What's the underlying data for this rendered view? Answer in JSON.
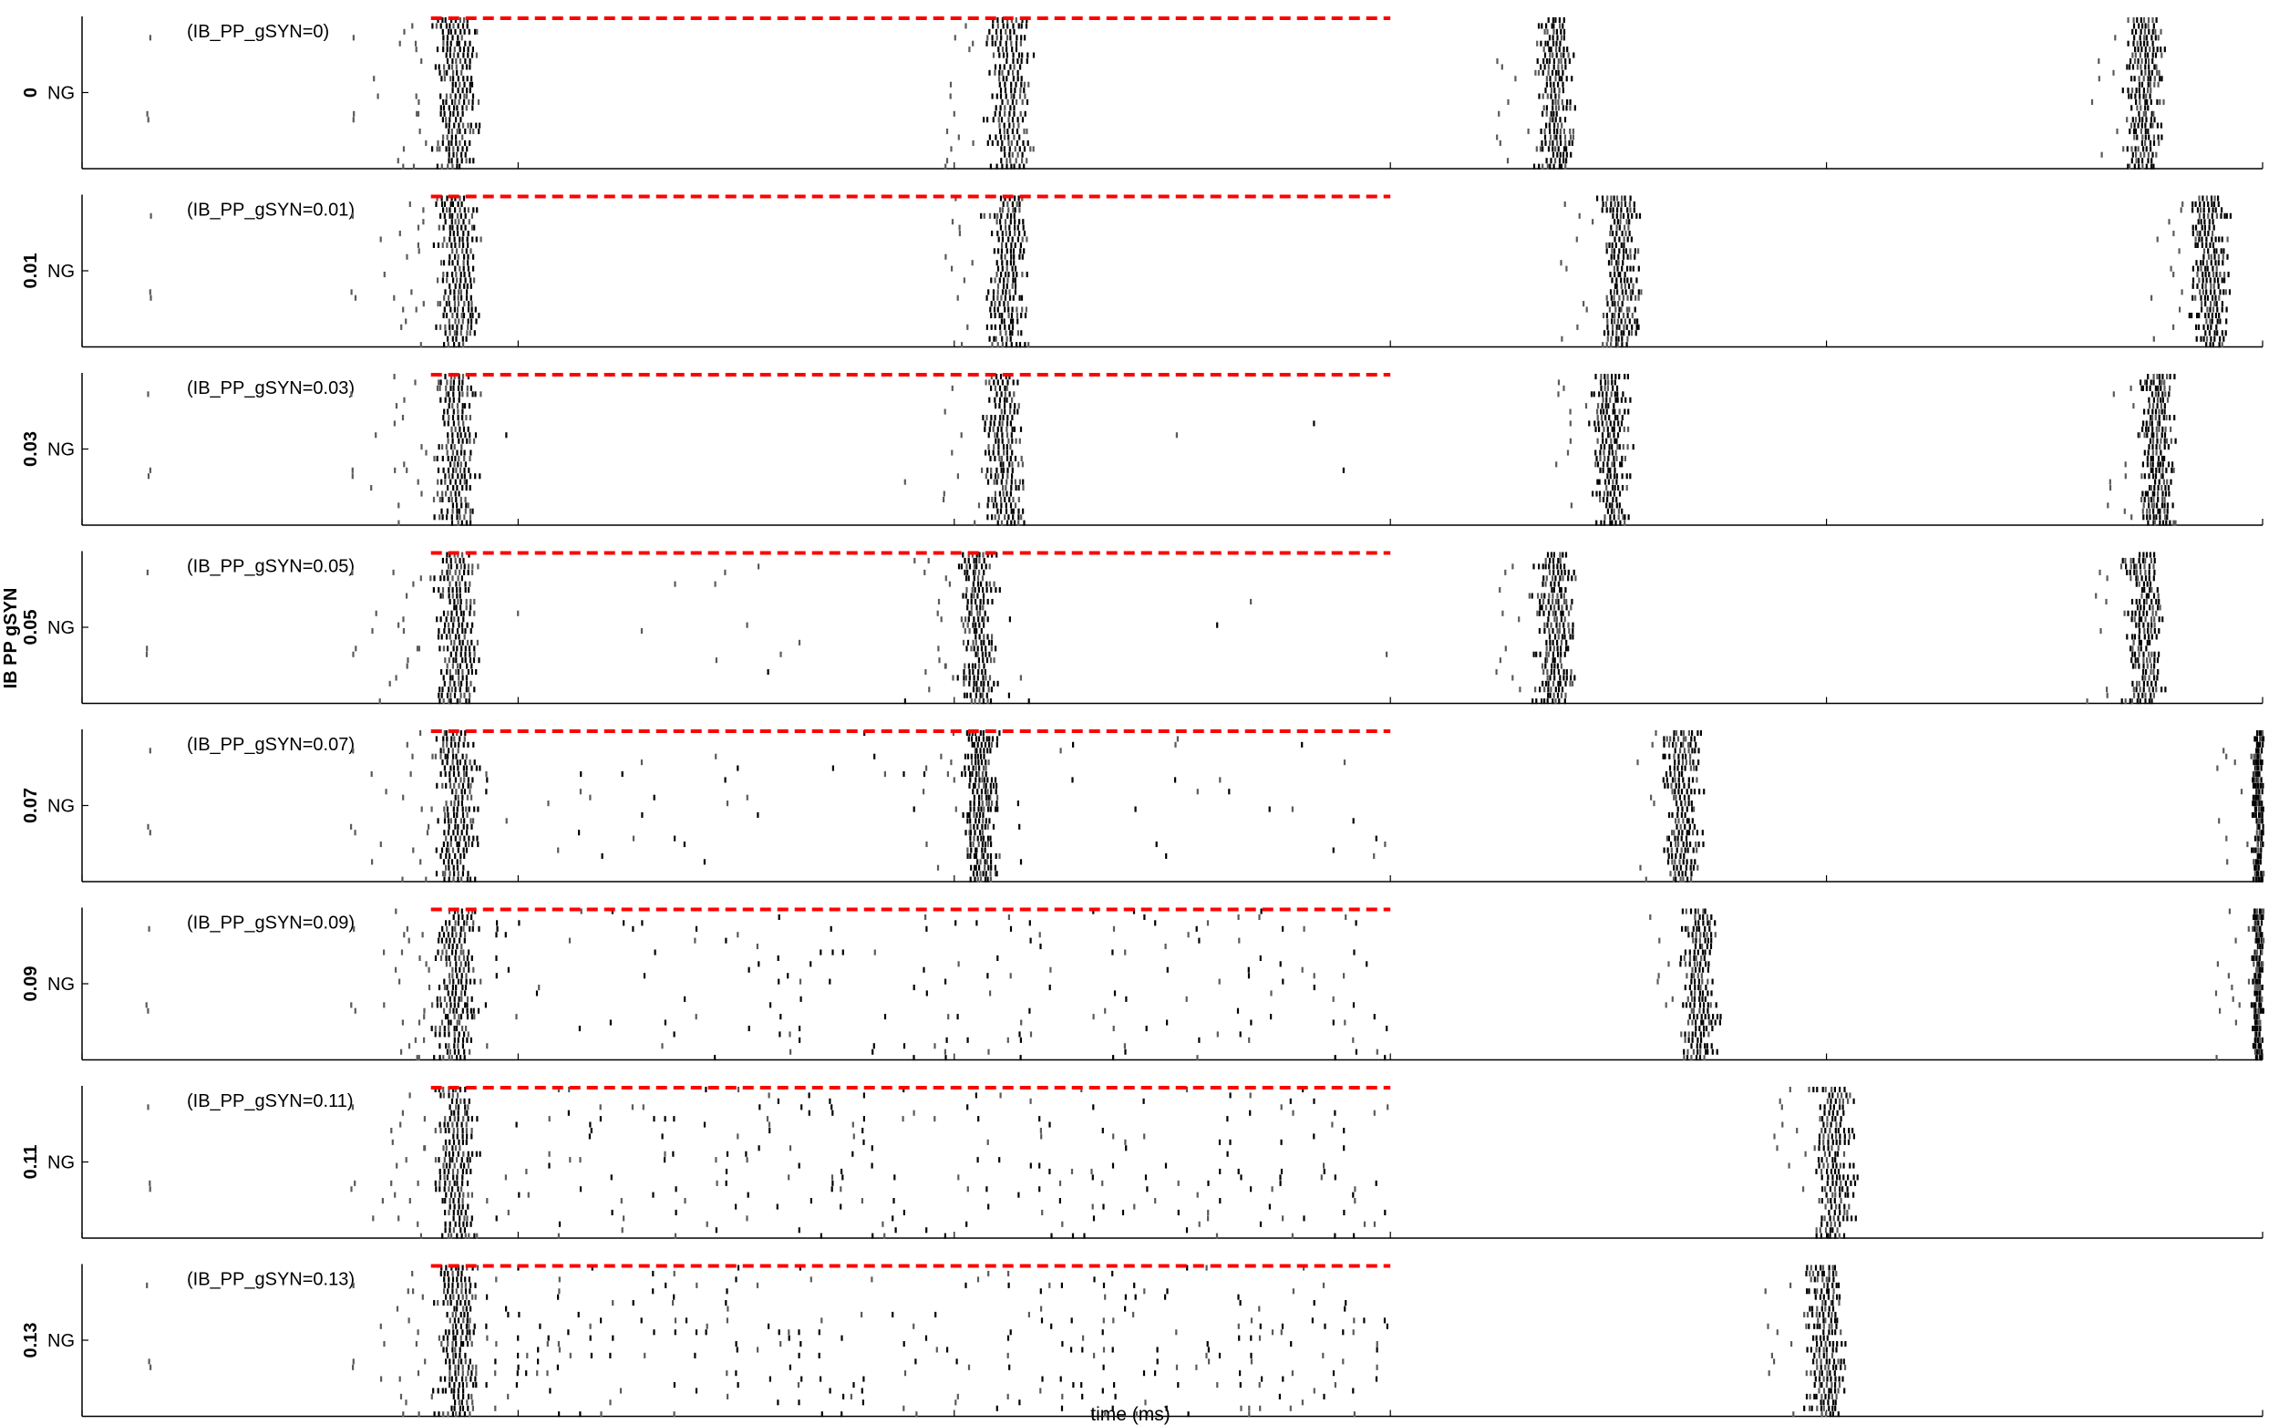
{
  "chart_data": {
    "type": "raster",
    "xlabel": "time (ms)",
    "ylabel": "IB PP gSYN",
    "xlim": [
      0,
      2500
    ],
    "xticks": [
      0,
      500,
      1000,
      1500,
      2000,
      2500
    ],
    "grid": false,
    "colors": {
      "spike": "#000000",
      "spike_alt": "#5a5a5a",
      "dashed_line": "#ff0000",
      "axis": "#000000"
    },
    "population_label": "NG",
    "red_dashed_line": {
      "x_start": 400,
      "x_end": 1500,
      "style": "dashed"
    },
    "panels": [
      {
        "row_label": "0",
        "annotation": "(IB_PP_gSYN=0)",
        "bursts": [
          {
            "center": 430,
            "width": 50
          },
          {
            "center": 1065,
            "width": 55
          },
          {
            "center": 1690,
            "width": 45
          },
          {
            "center": 2365,
            "width": 45
          }
        ],
        "early_spikes": [
          {
            "t": 75
          },
          {
            "t": 310
          }
        ],
        "sparse_density": 0.0
      },
      {
        "row_label": "0.01",
        "annotation": "(IB_PP_gSYN=0.01)",
        "bursts": [
          {
            "center": 430,
            "width": 50
          },
          {
            "center": 1060,
            "width": 50
          },
          {
            "center": 1765,
            "width": 45
          },
          {
            "center": 2440,
            "width": 45
          }
        ],
        "early_spikes": [
          {
            "t": 75
          },
          {
            "t": 310
          }
        ],
        "sparse_density": 0.0
      },
      {
        "row_label": "0.03",
        "annotation": "(IB_PP_gSYN=0.03)",
        "bursts": [
          {
            "center": 430,
            "width": 50
          },
          {
            "center": 1060,
            "width": 50
          },
          {
            "center": 1755,
            "width": 45
          },
          {
            "center": 2380,
            "width": 40
          }
        ],
        "early_spikes": [
          {
            "t": 75
          },
          {
            "t": 310
          }
        ],
        "sparse_density": 0.004
      },
      {
        "row_label": "0.05",
        "annotation": "(IB_PP_gSYN=0.05)",
        "bursts": [
          {
            "center": 430,
            "width": 50
          },
          {
            "center": 1030,
            "width": 45
          },
          {
            "center": 1690,
            "width": 45
          },
          {
            "center": 2365,
            "width": 45
          }
        ],
        "early_spikes": [
          {
            "t": 75
          },
          {
            "t": 310
          }
        ],
        "sparse_density": 0.008
      },
      {
        "row_label": "0.07",
        "annotation": "(IB_PP_gSYN=0.07)",
        "bursts": [
          {
            "center": 430,
            "width": 50
          },
          {
            "center": 1030,
            "width": 40
          },
          {
            "center": 1835,
            "width": 45
          },
          {
            "center": 2495,
            "width": 15
          }
        ],
        "early_spikes": [
          {
            "t": 75
          },
          {
            "t": 310
          }
        ],
        "sparse_density": 0.03
      },
      {
        "row_label": "0.09",
        "annotation": "(IB_PP_gSYN=0.09)",
        "bursts": [
          {
            "center": 430,
            "width": 50
          },
          {
            "center": 1855,
            "width": 45
          },
          {
            "center": 2495,
            "width": 15
          }
        ],
        "early_spikes": [
          {
            "t": 75
          },
          {
            "t": 310
          }
        ],
        "sparse_density": 0.06
      },
      {
        "row_label": "0.11",
        "annotation": "(IB_PP_gSYN=0.11)",
        "bursts": [
          {
            "center": 430,
            "width": 50
          },
          {
            "center": 2010,
            "width": 50
          }
        ],
        "early_spikes": [
          {
            "t": 75
          },
          {
            "t": 310
          }
        ],
        "sparse_density": 0.09
      },
      {
        "row_label": "0.13",
        "annotation": "(IB_PP_gSYN=0.13)",
        "bursts": [
          {
            "center": 430,
            "width": 50
          },
          {
            "center": 2000,
            "width": 45
          }
        ],
        "early_spikes": [
          {
            "t": 75
          },
          {
            "t": 310
          }
        ],
        "sparse_density": 0.12
      }
    ]
  }
}
